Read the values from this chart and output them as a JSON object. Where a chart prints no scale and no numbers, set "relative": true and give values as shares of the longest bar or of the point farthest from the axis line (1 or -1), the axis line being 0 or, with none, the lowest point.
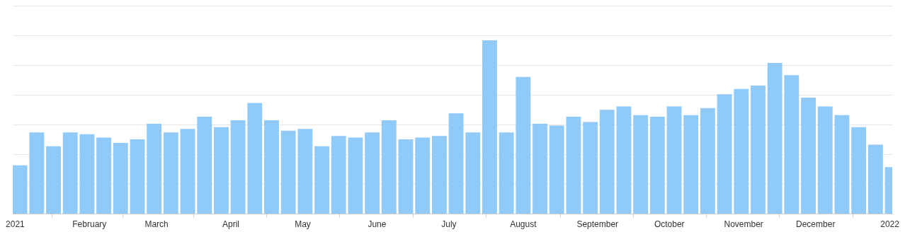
{
  "chart_data": {
    "type": "bar",
    "relative": true,
    "grid": "y",
    "legend": false,
    "tick_labels": "x",
    "x": [
      "2021-01-03",
      "2021-01-10",
      "2021-01-17",
      "2021-01-24",
      "2021-01-31",
      "2021-02-07",
      "2021-02-14",
      "2021-02-21",
      "2021-02-28",
      "2021-03-07",
      "2021-03-14",
      "2021-03-21",
      "2021-03-28",
      "2021-04-04",
      "2021-04-11",
      "2021-04-18",
      "2021-04-25",
      "2021-05-02",
      "2021-05-09",
      "2021-05-16",
      "2021-05-23",
      "2021-05-30",
      "2021-06-06",
      "2021-06-13",
      "2021-06-20",
      "2021-06-27",
      "2021-07-04",
      "2021-07-11",
      "2021-07-18",
      "2021-07-25",
      "2021-08-01",
      "2021-08-08",
      "2021-08-15",
      "2021-08-22",
      "2021-08-29",
      "2021-09-05",
      "2021-09-12",
      "2021-09-19",
      "2021-09-26",
      "2021-10-03",
      "2021-10-10",
      "2021-10-17",
      "2021-10-24",
      "2021-10-31",
      "2021-11-07",
      "2021-11-14",
      "2021-11-21",
      "2021-11-28",
      "2021-12-05",
      "2021-12-12",
      "2021-12-19",
      "2021-12-26",
      "2022-01-02"
    ],
    "xlim": [
      "2020-12-31",
      "2022-01-02"
    ],
    "xticks": [
      {
        "value": "2021-01-01",
        "label": "2021"
      },
      {
        "value": "2021-02-01",
        "label": "February"
      },
      {
        "value": "2021-03-01",
        "label": "March"
      },
      {
        "value": "2021-04-01",
        "label": "April"
      },
      {
        "value": "2021-05-01",
        "label": "May"
      },
      {
        "value": "2021-06-01",
        "label": "June"
      },
      {
        "value": "2021-07-01",
        "label": "July"
      },
      {
        "value": "2021-08-01",
        "label": "August"
      },
      {
        "value": "2021-09-01",
        "label": "September"
      },
      {
        "value": "2021-10-01",
        "label": "October"
      },
      {
        "value": "2021-11-01",
        "label": "November"
      },
      {
        "value": "2021-12-01",
        "label": "December"
      },
      {
        "value": "2022-01-01",
        "label": "2022"
      }
    ],
    "color": "#90caf9",
    "values": [
      0.28,
      0.47,
      0.39,
      0.47,
      0.46,
      0.44,
      0.41,
      0.43,
      0.52,
      0.47,
      0.49,
      0.56,
      0.5,
      0.54,
      0.64,
      0.54,
      0.48,
      0.49,
      0.39,
      0.45,
      0.44,
      0.47,
      0.54,
      0.43,
      0.44,
      0.45,
      0.58,
      0.47,
      1,
      0.47,
      0.79,
      0.52,
      0.51,
      0.56,
      0.53,
      0.6,
      0.62,
      0.57,
      0.56,
      0.62,
      0.57,
      0.61,
      0.69,
      0.72,
      0.74,
      0.87,
      0.8,
      0.67,
      0.62,
      0.57,
      0.5,
      0.4,
      0.27
    ]
  }
}
